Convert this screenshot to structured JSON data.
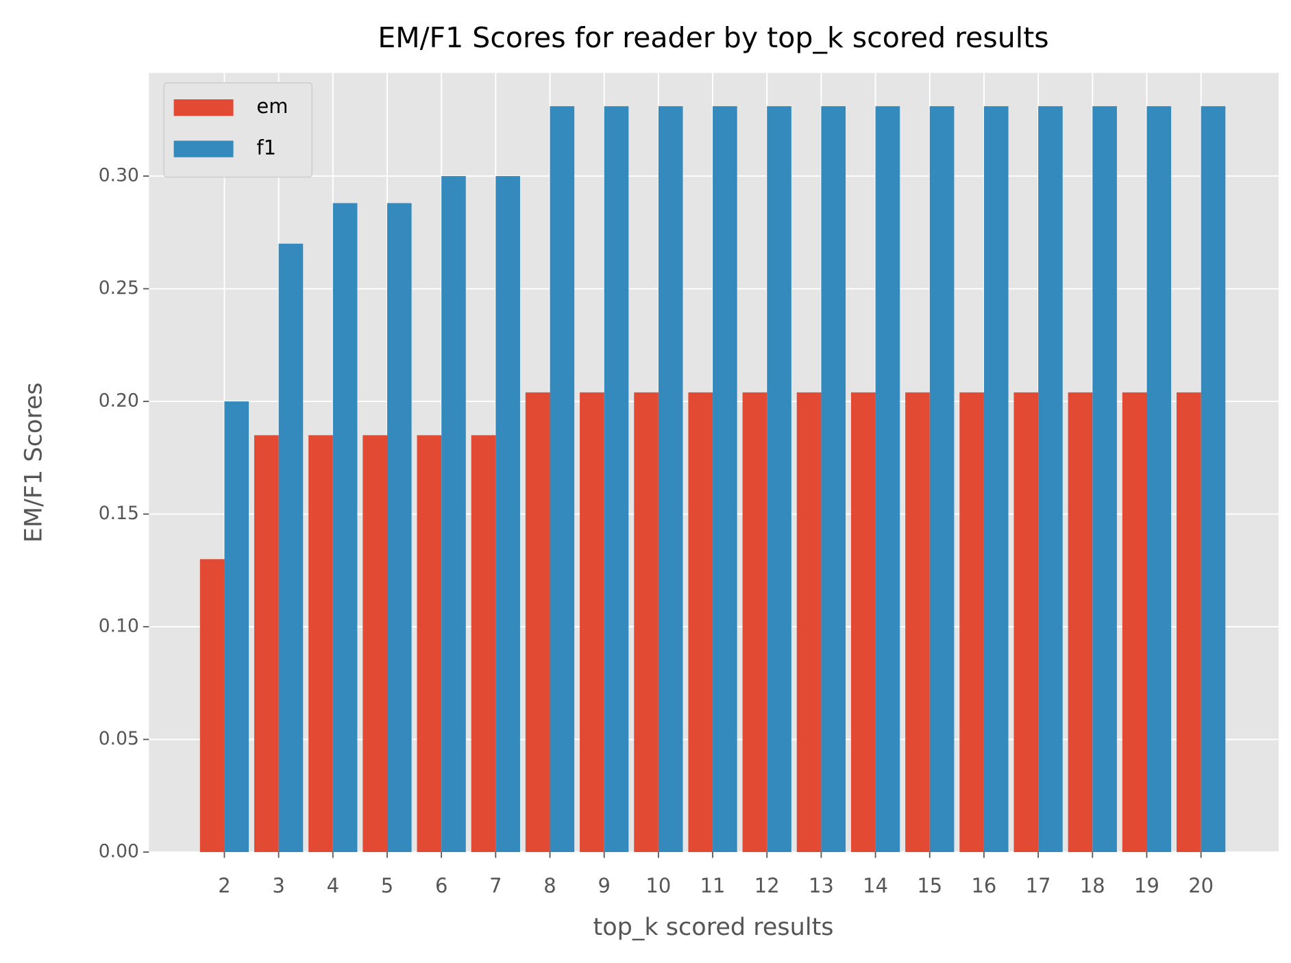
{
  "chart_data": {
    "type": "bar",
    "title": "EM/F1 Scores for reader by top_k scored results",
    "x_label": "top_k scored results",
    "y_label": "EM/F1 Scores",
    "x": [
      2,
      3,
      4,
      5,
      6,
      7,
      8,
      9,
      10,
      11,
      12,
      13,
      14,
      15,
      16,
      17,
      18,
      19,
      20
    ],
    "series": [
      {
        "name": "em",
        "color": "#E24A33",
        "values": [
          0.13,
          0.185,
          0.185,
          0.185,
          0.185,
          0.185,
          0.204,
          0.204,
          0.204,
          0.204,
          0.204,
          0.204,
          0.204,
          0.204,
          0.204,
          0.204,
          0.204,
          0.204,
          0.204
        ]
      },
      {
        "name": "f1",
        "color": "#348ABD",
        "values": [
          0.2,
          0.27,
          0.288,
          0.288,
          0.3,
          0.3,
          0.331,
          0.331,
          0.331,
          0.331,
          0.331,
          0.331,
          0.331,
          0.331,
          0.331,
          0.331,
          0.331,
          0.331,
          0.331
        ]
      }
    ],
    "xlim": [
      0.61,
      21.43
    ],
    "xticks": [
      2,
      3,
      4,
      5,
      6,
      7,
      8,
      9,
      10,
      11,
      12,
      13,
      14,
      15,
      16,
      17,
      18,
      19,
      20
    ],
    "ylim": [
      0,
      0.3458
    ],
    "yticks": [
      {
        "value": 0,
        "label": "0.00"
      },
      {
        "value": 0.05,
        "label": "0.05"
      },
      {
        "value": 0.1,
        "label": "0.10"
      },
      {
        "value": 0.15,
        "label": "0.15"
      },
      {
        "value": 0.2,
        "label": "0.20"
      },
      {
        "value": 0.25,
        "label": "0.25"
      },
      {
        "value": 0.3,
        "label": "0.30"
      }
    ],
    "grid": true,
    "legend": "upper left"
  }
}
